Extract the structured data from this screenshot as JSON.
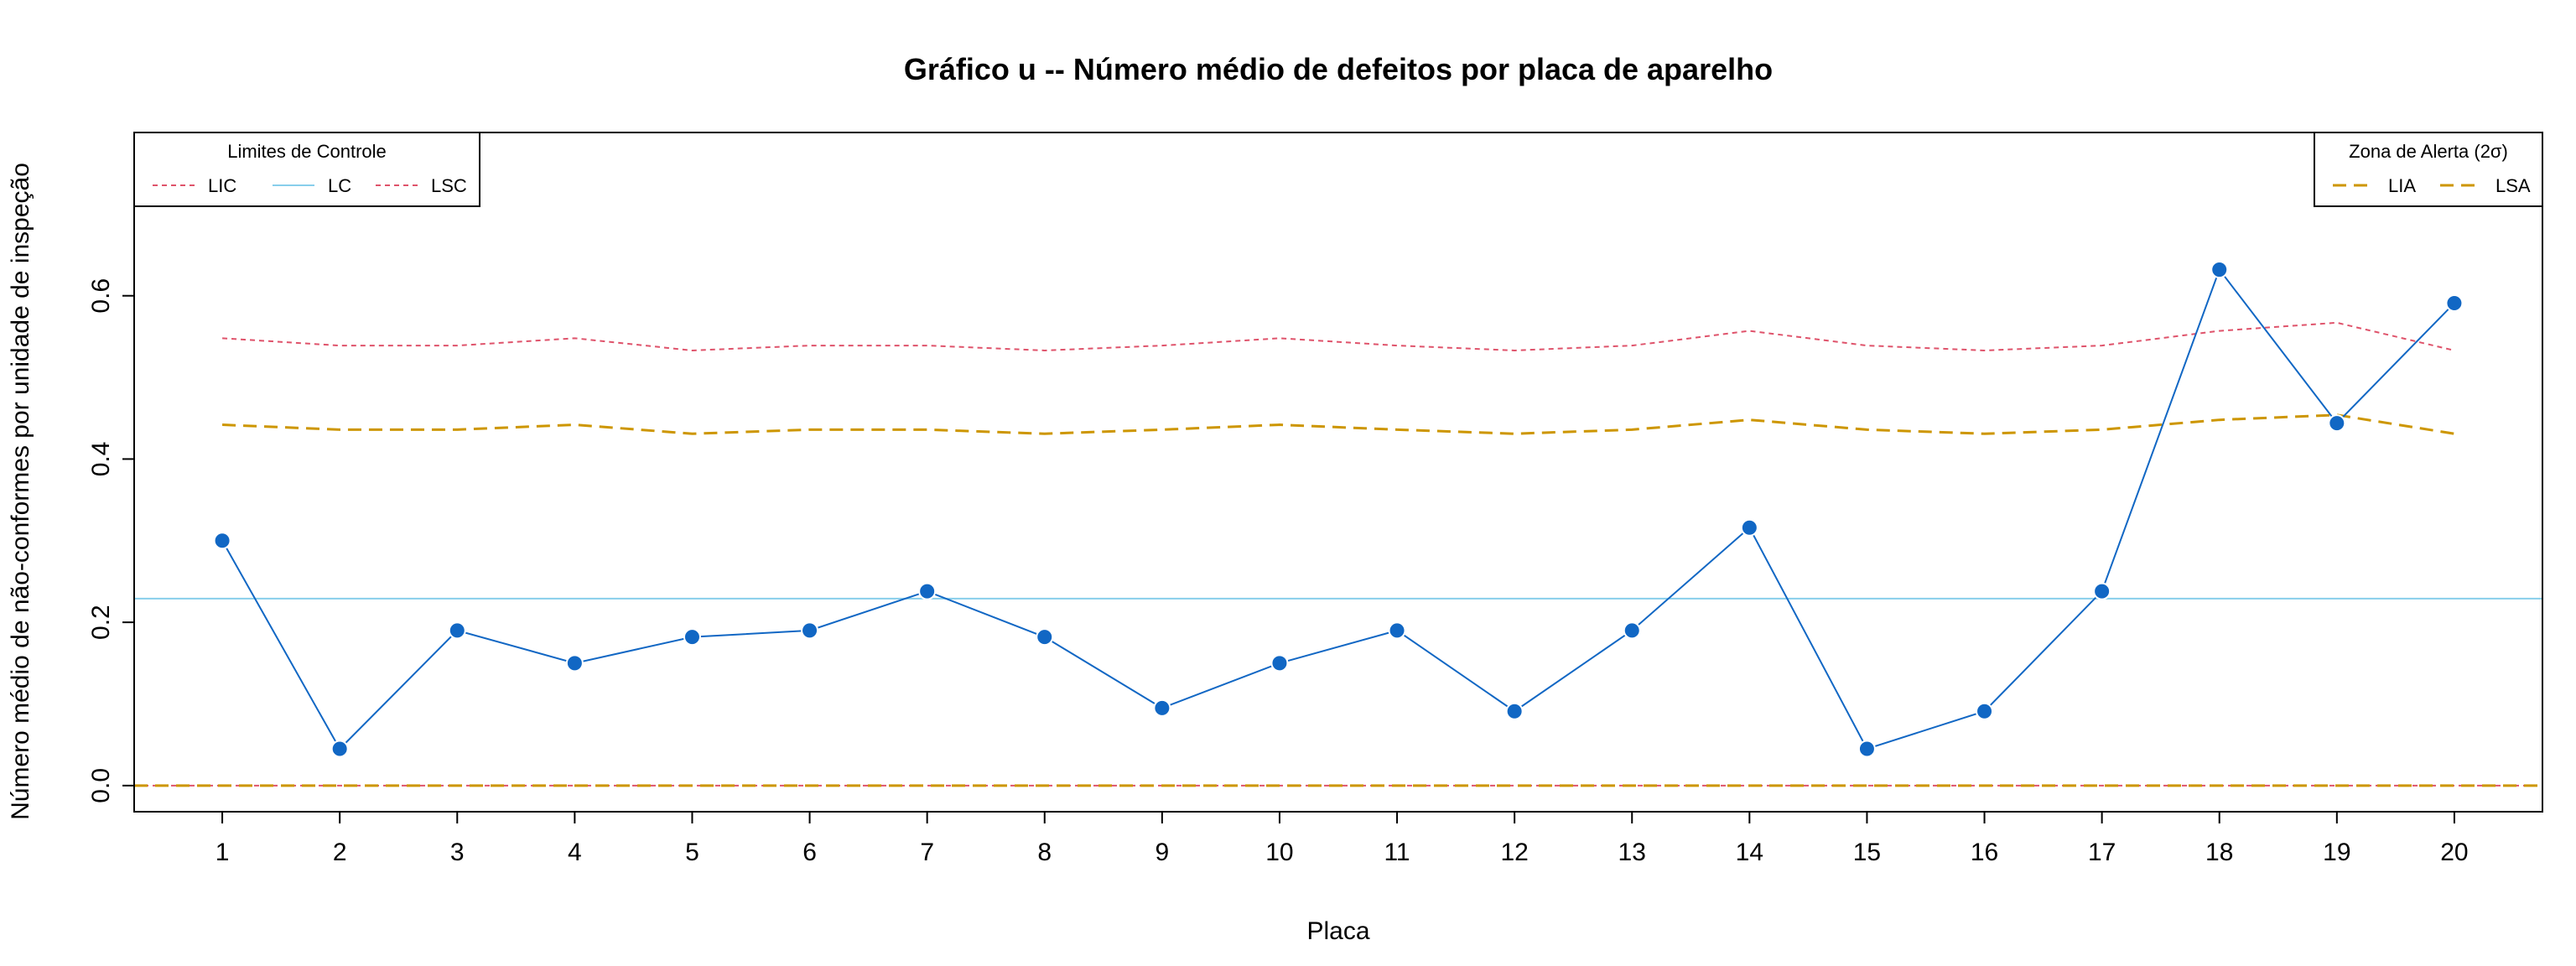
{
  "chart_data": {
    "type": "line",
    "title": "Gráfico u -- Número médio de defeitos por placa de aparelho",
    "xlabel": "Placa",
    "ylabel": "Número médio de não-conformes por unidade de inspeção",
    "categories": [
      "1",
      "2",
      "3",
      "4",
      "5",
      "6",
      "7",
      "8",
      "9",
      "10",
      "11",
      "12",
      "13",
      "14",
      "15",
      "16",
      "17",
      "18",
      "19",
      "20"
    ],
    "xlim": [
      0.25,
      20.75
    ],
    "ylim": [
      -0.032,
      0.8
    ],
    "y_ticks": [
      0.0,
      0.2,
      0.4,
      0.6
    ],
    "y_tick_labels": [
      "0.0",
      "0.2",
      "0.4",
      "0.6"
    ],
    "grid": false,
    "series": [
      {
        "name": "",
        "style": "line-points",
        "color": "#1167c4",
        "values": [
          0.3,
          0.045,
          0.19,
          0.15,
          0.182,
          0.19,
          0.238,
          0.182,
          0.095,
          0.15,
          0.19,
          0.091,
          0.19,
          0.316,
          0.045,
          0.091,
          0.238,
          0.632,
          0.444,
          0.591
        ]
      },
      {
        "name": "LIC",
        "style": "dotted",
        "color": "#df536b",
        "values": [
          0,
          0,
          0,
          0,
          0,
          0,
          0,
          0,
          0,
          0,
          0,
          0,
          0,
          0,
          0,
          0,
          0,
          0,
          0,
          0
        ]
      },
      {
        "name": "LC",
        "style": "solid-hline",
        "color": "#87ceeb",
        "values": [
          0.229,
          0.229,
          0.229,
          0.229,
          0.229,
          0.229,
          0.229,
          0.229,
          0.229,
          0.229,
          0.229,
          0.229,
          0.229,
          0.229,
          0.229,
          0.229,
          0.229,
          0.229,
          0.229,
          0.229
        ]
      },
      {
        "name": "LSC",
        "style": "dotted",
        "color": "#df536b",
        "values": [
          0.548,
          0.539,
          0.539,
          0.548,
          0.533,
          0.539,
          0.539,
          0.533,
          0.539,
          0.548,
          0.539,
          0.533,
          0.539,
          0.557,
          0.539,
          0.533,
          0.539,
          0.557,
          0.567,
          0.533
        ]
      },
      {
        "name": "LIA",
        "style": "dashed",
        "color": "#cd9600",
        "values": [
          0,
          0,
          0,
          0,
          0,
          0,
          0,
          0,
          0,
          0,
          0,
          0,
          0,
          0,
          0,
          0,
          0,
          0,
          0,
          0
        ]
      },
      {
        "name": "LSA",
        "style": "dashed",
        "color": "#cd9600",
        "values": [
          0.442,
          0.436,
          0.436,
          0.442,
          0.431,
          0.436,
          0.436,
          0.431,
          0.436,
          0.442,
          0.436,
          0.431,
          0.436,
          0.448,
          0.436,
          0.431,
          0.436,
          0.448,
          0.454,
          0.431
        ]
      }
    ],
    "legends": [
      {
        "placement": "top-left",
        "title": "Limites de Controle",
        "entries": [
          {
            "label": "LIC",
            "style": "dotted",
            "color": "#df536b"
          },
          {
            "label": "LC",
            "style": "solid",
            "color": "#87ceeb"
          },
          {
            "label": "LSC",
            "style": "dotted",
            "color": "#df536b"
          }
        ]
      },
      {
        "placement": "top-right",
        "title": "Zona de Alerta (2σ)",
        "entries": [
          {
            "label": "LIA",
            "style": "dashed",
            "color": "#cd9600"
          },
          {
            "label": "LSA",
            "style": "dashed",
            "color": "#cd9600"
          }
        ]
      }
    ]
  }
}
